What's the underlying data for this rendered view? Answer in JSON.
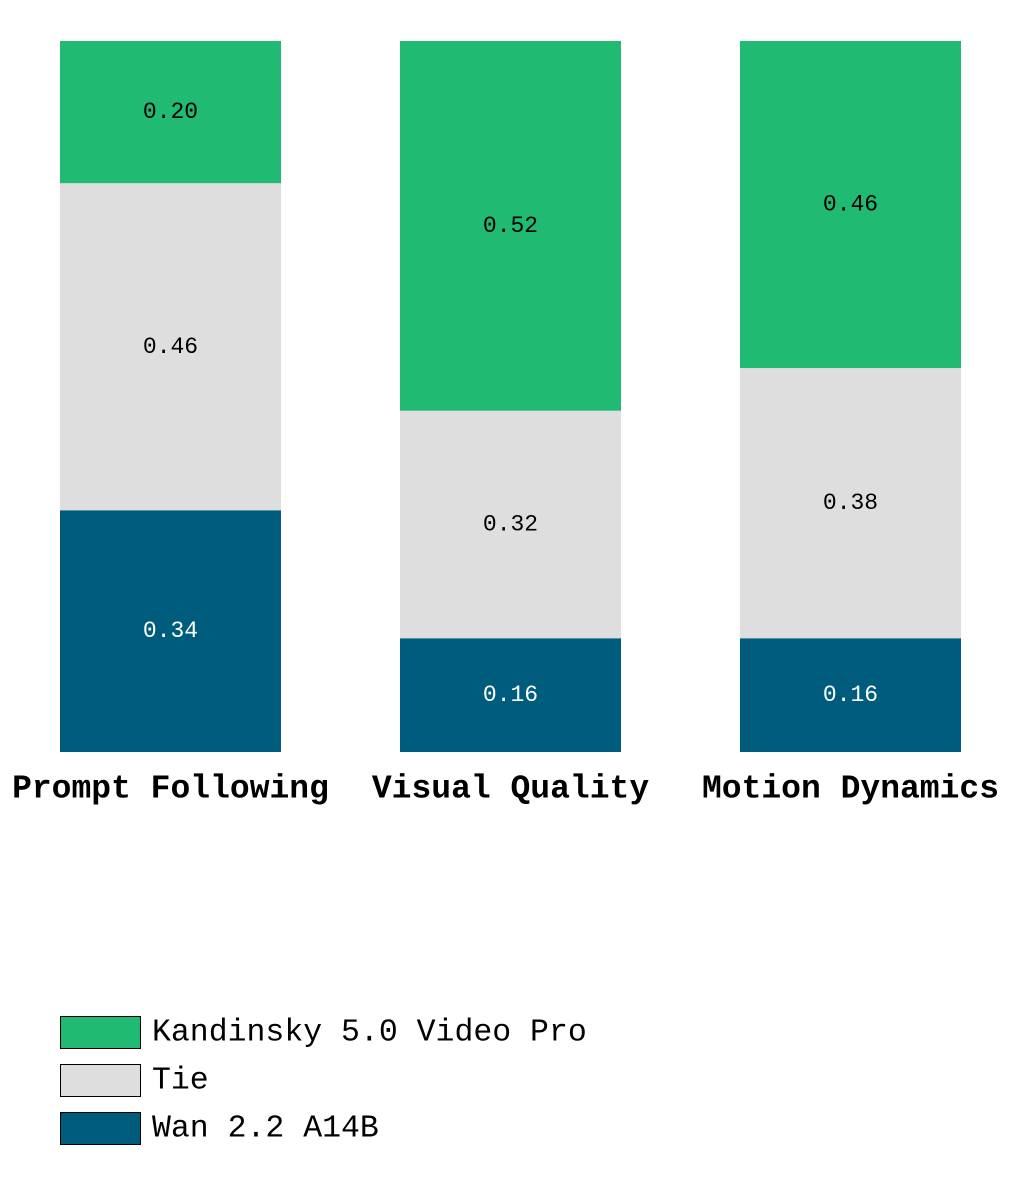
{
  "chart_data": {
    "type": "stacked-bar",
    "categories": [
      "Prompt Following",
      "Visual Quality",
      "Motion Dynamics"
    ],
    "ylim": [
      0,
      1
    ],
    "series": [
      {
        "name": "Kandinsky 5.0 Video Pro",
        "color": "#21ba72",
        "values": [
          0.2,
          0.52,
          0.46
        ],
        "value_labels": [
          "0.20",
          "0.52",
          "0.46"
        ]
      },
      {
        "name": "Tie",
        "color": "#dedede",
        "values": [
          0.46,
          0.32,
          0.38
        ],
        "value_labels": [
          "0.46",
          "0.32",
          "0.38"
        ]
      },
      {
        "name": "Wan 2.2 A14B",
        "color": "#005c7d",
        "values": [
          0.34,
          0.16,
          0.16
        ],
        "value_labels": [
          "0.34",
          "0.16",
          "0.16"
        ]
      }
    ]
  }
}
